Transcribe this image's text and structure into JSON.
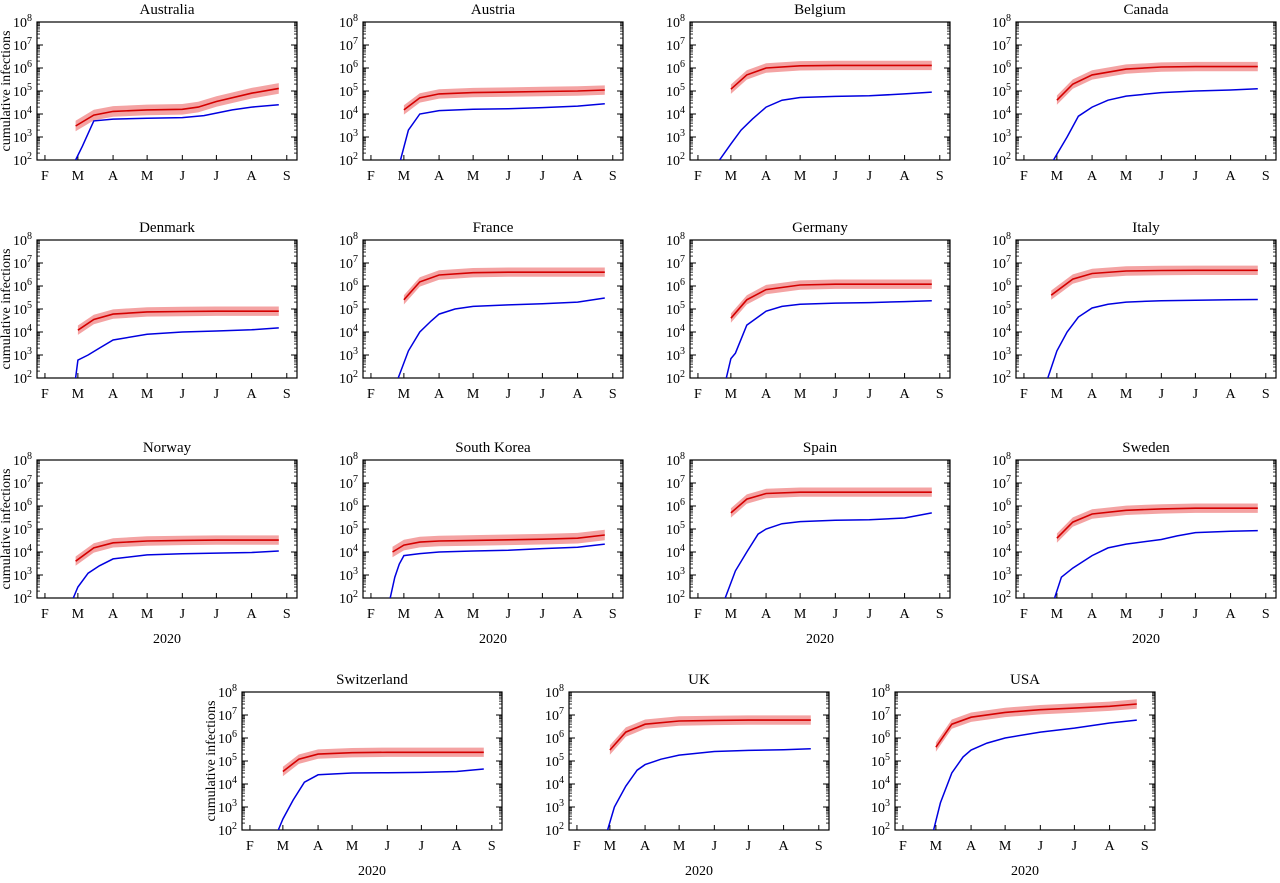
{
  "chart_data": {
    "type": "line",
    "ylabel": "cumulative infections",
    "xlabel": "2020",
    "yscale": "log",
    "ylim": [
      100,
      100000000
    ],
    "ytick_labels": [
      {
        "base": "10",
        "exp": "2"
      },
      {
        "base": "10",
        "exp": "3"
      },
      {
        "base": "10",
        "exp": "4"
      },
      {
        "base": "10",
        "exp": "5"
      },
      {
        "base": "10",
        "exp": "6"
      },
      {
        "base": "10",
        "exp": "7"
      },
      {
        "base": "10",
        "exp": "8"
      }
    ],
    "x_ticks": [
      "F",
      "M",
      "A",
      "M",
      "J",
      "J",
      "A",
      "S"
    ],
    "series_colors": {
      "band": "#f4a3a3",
      "model": "#d40000",
      "observed": "#0000e0"
    },
    "panels": [
      {
        "title": "Australia",
        "x": [
          "Feb 28",
          "Mar 15",
          "Apr 1",
          "May 1",
          "Jun 1",
          "Jun 15",
          "Jul 1",
          "Aug 1",
          "Aug 25"
        ],
        "model": [
          3000,
          9000,
          13000,
          15000,
          16000,
          20000,
          35000,
          80000,
          130000
        ],
        "band_ratio": 1.7,
        "observed_x": [
          "Feb 28",
          "Mar 5",
          "Mar 15",
          "Apr 1",
          "May 1",
          "Jun 1",
          "Jun 20",
          "Jul 15",
          "Aug 1",
          "Aug 25"
        ],
        "observed": [
          100,
          400,
          5000,
          6000,
          6500,
          7000,
          8500,
          15000,
          20000,
          25000
        ]
      },
      {
        "title": "Austria",
        "x": [
          "Mar 1",
          "Mar 15",
          "Apr 1",
          "May 1",
          "Jun 1",
          "Jul 1",
          "Aug 1",
          "Aug 25"
        ],
        "model": [
          15000,
          50000,
          75000,
          85000,
          90000,
          95000,
          100000,
          110000
        ],
        "band_ratio": 1.6,
        "observed_x": [
          "Feb 27",
          "Mar 5",
          "Mar 15",
          "Apr 1",
          "May 1",
          "Jun 1",
          "Jul 1",
          "Aug 1",
          "Aug 25"
        ],
        "observed": [
          100,
          2000,
          10000,
          14000,
          16000,
          17000,
          19000,
          22000,
          28000
        ]
      },
      {
        "title": "Belgium",
        "x": [
          "Mar 1",
          "Mar 15",
          "Apr 1",
          "May 1",
          "Jun 1",
          "Jul 1",
          "Aug 1",
          "Aug 25"
        ],
        "model": [
          120000,
          500000,
          1000000,
          1250000,
          1300000,
          1300000,
          1300000,
          1300000
        ],
        "band_ratio": 1.6,
        "observed_x": [
          "Feb 20",
          "Mar 1",
          "Mar 10",
          "Mar 20",
          "Apr 1",
          "Apr 15",
          "May 1",
          "Jun 1",
          "Jul 1",
          "Aug 1",
          "Aug 25"
        ],
        "observed": [
          100,
          500,
          2000,
          6000,
          20000,
          40000,
          52000,
          58000,
          62000,
          75000,
          90000
        ]
      },
      {
        "title": "Canada",
        "x": [
          "Mar 1",
          "Mar 15",
          "Apr 1",
          "May 1",
          "Jun 1",
          "Jul 1",
          "Aug 1",
          "Aug 25"
        ],
        "model": [
          40000,
          200000,
          500000,
          900000,
          1100000,
          1150000,
          1150000,
          1150000
        ],
        "band_ratio": 1.6,
        "observed_x": [
          "Feb 27",
          "Mar 10",
          "Mar 20",
          "Apr 1",
          "Apr 15",
          "May 1",
          "Jun 1",
          "Jul 1",
          "Aug 1",
          "Aug 25"
        ],
        "observed": [
          100,
          1000,
          8000,
          20000,
          40000,
          60000,
          85000,
          100000,
          110000,
          125000
        ]
      },
      {
        "title": "Denmark",
        "x": [
          "Mar 1",
          "Mar 15",
          "Apr 1",
          "May 1",
          "Jun 1",
          "Jul 1",
          "Aug 1",
          "Aug 25"
        ],
        "model": [
          12000,
          35000,
          60000,
          75000,
          78000,
          80000,
          80000,
          80000
        ],
        "band_ratio": 1.6,
        "observed_x": [
          "Feb 28",
          "Mar 1",
          "Mar 10",
          "Mar 20",
          "Apr 1",
          "May 1",
          "Jun 1",
          "Jul 1",
          "Aug 1",
          "Aug 25"
        ],
        "observed": [
          100,
          600,
          1000,
          2000,
          4500,
          8000,
          10000,
          11000,
          12500,
          15000
        ]
      },
      {
        "title": "France",
        "x": [
          "Mar 1",
          "Mar 15",
          "Apr 1",
          "May 1",
          "Jun 1",
          "Jul 1",
          "Aug 1",
          "Aug 25"
        ],
        "model": [
          250000,
          1500000,
          3000000,
          3800000,
          4000000,
          4000000,
          4000000,
          4000000
        ],
        "band_ratio": 1.6,
        "observed_x": [
          "Feb 25",
          "Mar 5",
          "Mar 15",
          "Mar 25",
          "Apr 1",
          "Apr 15",
          "May 1",
          "Jun 1",
          "Jul 1",
          "Aug 1",
          "Aug 25"
        ],
        "observed": [
          100,
          1500,
          10000,
          30000,
          60000,
          100000,
          130000,
          150000,
          170000,
          200000,
          300000
        ]
      },
      {
        "title": "Germany",
        "x": [
          "Mar 1",
          "Mar 15",
          "Apr 1",
          "May 1",
          "Jun 1",
          "Jul 1",
          "Aug 1",
          "Aug 25"
        ],
        "model": [
          40000,
          250000,
          700000,
          1100000,
          1200000,
          1200000,
          1200000,
          1200000
        ],
        "band_ratio": 1.6,
        "observed_x": [
          "Feb 26",
          "Mar 1",
          "Mar 5",
          "Mar 15",
          "Apr 1",
          "Apr 15",
          "May 1",
          "Jun 1",
          "Jul 1",
          "Aug 1",
          "Aug 25"
        ],
        "observed": [
          100,
          700,
          1200,
          20000,
          80000,
          130000,
          160000,
          180000,
          190000,
          210000,
          230000
        ]
      },
      {
        "title": "Italy",
        "x": [
          "Feb 25",
          "Mar 15",
          "Apr 1",
          "May 1",
          "Jun 1",
          "Jul 1",
          "Aug 1",
          "Aug 25"
        ],
        "model": [
          400000,
          2000000,
          3500000,
          4500000,
          4700000,
          4800000,
          4800000,
          4800000
        ],
        "band_ratio": 1.6,
        "observed_x": [
          "Feb 22",
          "Mar 1",
          "Mar 10",
          "Mar 20",
          "Apr 1",
          "Apr 15",
          "May 1",
          "Jun 1",
          "Jul 1",
          "Aug 1",
          "Aug 25"
        ],
        "observed": [
          100,
          1500,
          10000,
          45000,
          110000,
          160000,
          200000,
          230000,
          240000,
          250000,
          260000
        ]
      },
      {
        "title": "Norway",
        "x": [
          "Feb 28",
          "Mar 15",
          "Apr 1",
          "May 1",
          "Jun 1",
          "Jul 1",
          "Aug 1",
          "Aug 25"
        ],
        "model": [
          4000,
          15000,
          25000,
          30000,
          32000,
          33000,
          33000,
          33000
        ],
        "band_ratio": 1.6,
        "observed_x": [
          "Feb 26",
          "Mar 1",
          "Mar 10",
          "Mar 20",
          "Apr 1",
          "May 1",
          "Jun 1",
          "Jul 1",
          "Aug 1",
          "Aug 25"
        ],
        "observed": [
          100,
          300,
          1200,
          2500,
          5000,
          7500,
          8400,
          9000,
          9500,
          11000
        ]
      },
      {
        "title": "South Korea",
        "x": [
          "Feb 20",
          "Mar 1",
          "Mar 15",
          "Apr 1",
          "May 1",
          "Jun 1",
          "Jul 1",
          "Aug 1",
          "Aug 25"
        ],
        "model": [
          10000,
          20000,
          27000,
          30000,
          32000,
          34000,
          36000,
          40000,
          55000
        ],
        "band_ratio": 1.7,
        "observed_x": [
          "Feb 18",
          "Feb 22",
          "Feb 26",
          "Mar 1",
          "Mar 15",
          "Apr 1",
          "May 1",
          "Jun 1",
          "Jul 1",
          "Aug 1",
          "Aug 25"
        ],
        "observed": [
          100,
          800,
          3000,
          7000,
          8500,
          10000,
          11000,
          12000,
          14000,
          16000,
          22000
        ]
      },
      {
        "title": "Spain",
        "x": [
          "Mar 1",
          "Mar 15",
          "Apr 1",
          "May 1",
          "Jun 1",
          "Jul 1",
          "Aug 1",
          "Aug 25"
        ],
        "model": [
          500000,
          2000000,
          3500000,
          4000000,
          4000000,
          4000000,
          4000000,
          4000000
        ],
        "band_ratio": 1.6,
        "observed_x": [
          "Feb 25",
          "Mar 5",
          "Mar 15",
          "Mar 25",
          "Apr 1",
          "Apr 15",
          "May 1",
          "Jun 1",
          "Jul 1",
          "Aug 1",
          "Aug 25"
        ],
        "observed": [
          100,
          1500,
          10000,
          60000,
          100000,
          170000,
          210000,
          240000,
          250000,
          300000,
          500000
        ]
      },
      {
        "title": "Sweden",
        "x": [
          "Mar 1",
          "Mar 15",
          "Apr 1",
          "May 1",
          "Jun 1",
          "Jul 1",
          "Aug 1",
          "Aug 25"
        ],
        "model": [
          40000,
          200000,
          450000,
          650000,
          750000,
          800000,
          800000,
          800000
        ],
        "band_ratio": 1.6,
        "observed_x": [
          "Feb 28",
          "Mar 5",
          "Mar 15",
          "Apr 1",
          "Apr 15",
          "May 1",
          "Jun 1",
          "Jun 15",
          "Jul 1",
          "Aug 1",
          "Aug 25"
        ],
        "observed": [
          100,
          800,
          2000,
          7000,
          15000,
          22000,
          35000,
          50000,
          70000,
          80000,
          85000
        ]
      },
      {
        "title": "Switzerland",
        "x": [
          "Mar 1",
          "Mar 15",
          "Apr 1",
          "May 1",
          "Jun 1",
          "Jul 1",
          "Aug 1",
          "Aug 25"
        ],
        "model": [
          35000,
          120000,
          200000,
          230000,
          240000,
          240000,
          240000,
          240000
        ],
        "band_ratio": 1.6,
        "observed_x": [
          "Feb 26",
          "Mar 1",
          "Mar 10",
          "Mar 20",
          "Apr 1",
          "May 1",
          "Jun 1",
          "Jul 1",
          "Aug 1",
          "Aug 25"
        ],
        "observed": [
          100,
          300,
          2000,
          12000,
          25000,
          30000,
          31000,
          32000,
          35000,
          45000
        ]
      },
      {
        "title": "UK",
        "x": [
          "Mar 1",
          "Mar 15",
          "Apr 1",
          "May 1",
          "Jun 1",
          "Jul 1",
          "Aug 1",
          "Aug 25"
        ],
        "model": [
          300000,
          1800000,
          4000000,
          5500000,
          5800000,
          6000000,
          6000000,
          6000000
        ],
        "band_ratio": 1.6,
        "observed_x": [
          "Feb 28",
          "Mar 5",
          "Mar 15",
          "Mar 25",
          "Apr 1",
          "Apr 15",
          "May 1",
          "Jun 1",
          "Jul 1",
          "Aug 1",
          "Aug 25"
        ],
        "observed": [
          100,
          1000,
          8000,
          40000,
          70000,
          120000,
          180000,
          260000,
          290000,
          310000,
          340000
        ]
      },
      {
        "title": "USA",
        "x": [
          "Mar 1",
          "Mar 15",
          "Apr 1",
          "May 1",
          "Jun 1",
          "Jul 1",
          "Aug 1",
          "Aug 25"
        ],
        "model": [
          400000,
          4000000,
          8000000,
          13000000,
          17000000,
          20000000,
          24000000,
          30000000
        ],
        "band_ratio": 1.6,
        "observed_x": [
          "Feb 28",
          "Mar 5",
          "Mar 15",
          "Mar 25",
          "Apr 1",
          "Apr 15",
          "May 1",
          "Jun 1",
          "Jul 1",
          "Aug 1",
          "Aug 25"
        ],
        "observed": [
          100,
          1500,
          30000,
          150000,
          300000,
          600000,
          1000000,
          1800000,
          2700000,
          4500000,
          6000000
        ]
      }
    ]
  }
}
